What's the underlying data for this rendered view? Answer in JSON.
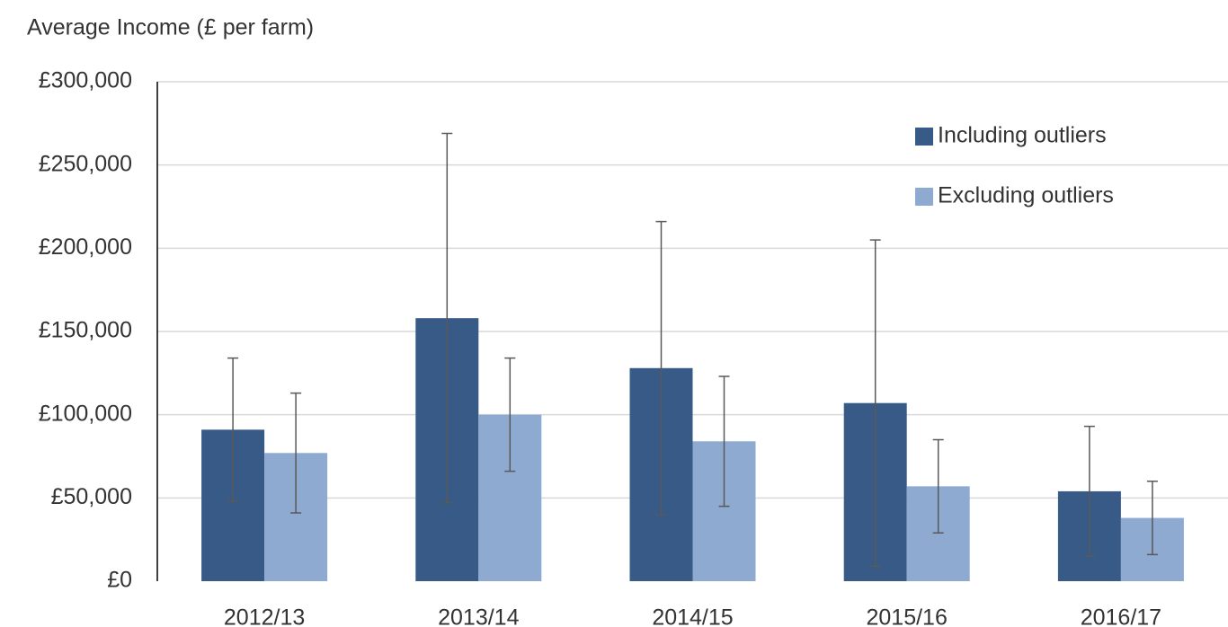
{
  "chart_data": {
    "type": "bar",
    "title": "Average Income (£ per farm)",
    "categories": [
      "2012/13",
      "2013/14",
      "2014/15",
      "2015/16",
      "2016/17"
    ],
    "series": [
      {
        "name": "Including outliers",
        "color": "#375a87",
        "values": [
          91000,
          158000,
          128000,
          107000,
          54000
        ],
        "errors": [
          43000,
          111000,
          88000,
          98000,
          39000
        ]
      },
      {
        "name": "Excluding outliers",
        "color": "#8eaad1",
        "values": [
          77000,
          100000,
          84000,
          57000,
          38000
        ],
        "errors": [
          36000,
          34000,
          39000,
          28000,
          22000
        ]
      }
    ],
    "ylim": [
      0,
      300000
    ],
    "yticks": [
      {
        "value": 0,
        "label": "£0"
      },
      {
        "value": 50000,
        "label": "£50,000"
      },
      {
        "value": 100000,
        "label": "£100,000"
      },
      {
        "value": 150000,
        "label": "£150,000"
      },
      {
        "value": 200000,
        "label": "£200,000"
      },
      {
        "value": 250000,
        "label": "£250,000"
      },
      {
        "value": 300000,
        "label": "£300,000"
      }
    ],
    "grid": true,
    "legend": "upper right"
  }
}
